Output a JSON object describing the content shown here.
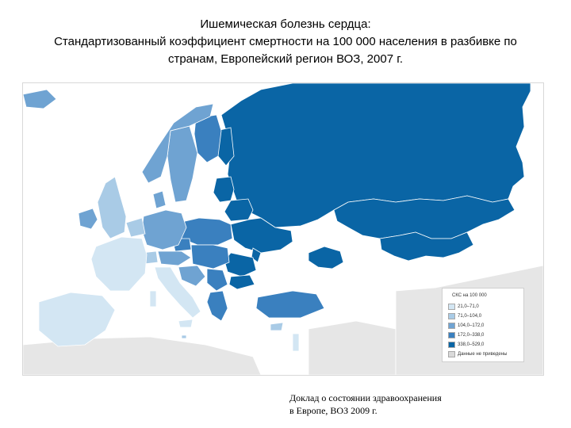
{
  "title": {
    "line1": "Ишемическая болезнь сердца:",
    "line2": "Стандартизованный коэффициент смертности на 100 000 населения в разбивке по",
    "line3": "странам, Европейский регион ВОЗ, 2007 г."
  },
  "map": {
    "legend": {
      "title": "СКС на 100 000",
      "items": [
        {
          "label": "21,0–71,0",
          "color": "#d3e6f3"
        },
        {
          "label": "71,0–104,0",
          "color": "#a9cbe6"
        },
        {
          "label": "104,0–172,0",
          "color": "#6fa3d2"
        },
        {
          "label": "172,0–338,0",
          "color": "#3a80bf"
        },
        {
          "label": "338,0–529,0",
          "color": "#0a65a5"
        },
        {
          "label": "Данные не приведены",
          "color": "#d9d9d9"
        }
      ]
    },
    "colors": {
      "ocean": "#ffffff",
      "border": "#ffffff",
      "outside": "#e6e6e6"
    }
  },
  "source": {
    "line1": "Доклад о состоянии здравоохранения",
    "line2": "в Европе, ВОЗ 2009 г."
  }
}
